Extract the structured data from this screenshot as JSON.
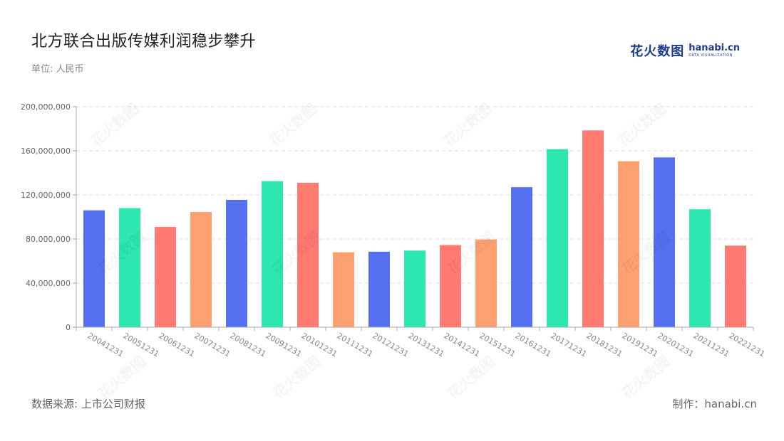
{
  "header": {
    "title": "北方联合出版传媒利润稳步攀升",
    "unit": "单位: 人民币"
  },
  "logo": {
    "cn": "花火数图",
    "en": "hanabi.cn",
    "sub": "DATA VISUALIZATION"
  },
  "footer": {
    "source": "数据来源: 上市公司财报",
    "credit": "制作：hanabi.cn"
  },
  "watermark_text": "花火数图",
  "palette": [
    "#5470ee",
    "#2ee6b0",
    "#ff7a70",
    "#ffa070"
  ],
  "chart_data": {
    "type": "bar",
    "title": "北方联合出版传媒利润稳步攀升",
    "ylabel": "",
    "xlabel": "",
    "ylim": [
      0,
      200000000
    ],
    "yticks": [
      0,
      40000000,
      80000000,
      120000000,
      160000000,
      200000000
    ],
    "ytick_labels": [
      "0",
      "40,000,000",
      "80,000,000",
      "120,000,000",
      "160,000,000",
      "200,000,000"
    ],
    "grid": true,
    "categories": [
      "20041231",
      "20051231",
      "20061231",
      "20071231",
      "20081231",
      "20091231",
      "20101231",
      "20111231",
      "20121231",
      "20131231",
      "20141231",
      "20151231",
      "20161231",
      "20171231",
      "20181231",
      "20191231",
      "20201231",
      "20211231",
      "20221231"
    ],
    "values": [
      106000000,
      108000000,
      91000000,
      104500000,
      115500000,
      132500000,
      131000000,
      68000000,
      68500000,
      69500000,
      74500000,
      79500000,
      127000000,
      161500000,
      178500000,
      150500000,
      154000000,
      107000000,
      74000000
    ]
  }
}
